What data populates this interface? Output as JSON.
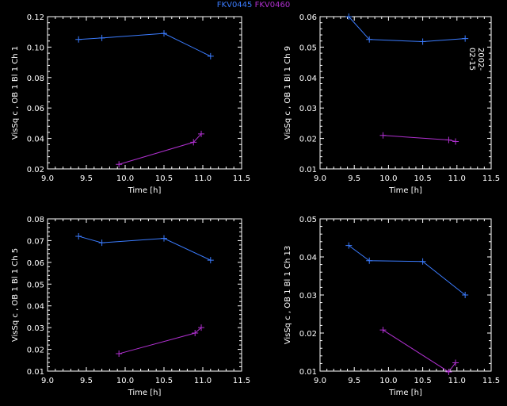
{
  "legend": [
    {
      "name": "FKV0445",
      "color": "#3b7cff"
    },
    {
      "name": "FKV0460",
      "color": "#b030d0"
    }
  ],
  "date_label": "2002-02-15",
  "chart_data": [
    {
      "type": "scatter",
      "xlabel": "Time [h]",
      "ylabel": "VisSq c , OB 1 Bl 1 Ch 1",
      "xlim": [
        9.0,
        11.5
      ],
      "ylim": [
        0.02,
        0.12
      ],
      "xticks": [
        "9.0",
        "9.5",
        "10.0",
        "10.5",
        "11.0",
        "11.5"
      ],
      "yticks": [
        "0.02",
        "0.04",
        "0.06",
        "0.08",
        "0.10",
        "0.12"
      ],
      "series": [
        {
          "name": "FKV0445",
          "color": "#3b7cff",
          "x": [
            9.4,
            9.7,
            10.5,
            11.1
          ],
          "y": [
            0.105,
            0.106,
            0.109,
            0.094
          ]
        },
        {
          "name": "FKV0460",
          "color": "#b030d0",
          "x": [
            9.92,
            10.88,
            10.98
          ],
          "y": [
            0.023,
            0.0375,
            0.043
          ]
        }
      ]
    },
    {
      "type": "scatter",
      "xlabel": "Time [h]",
      "ylabel": "VisSq c , OB 1 Bl 1 Ch 9",
      "xlim": [
        9.0,
        11.5
      ],
      "ylim": [
        0.01,
        0.06
      ],
      "xticks": [
        "9.0",
        "9.5",
        "10.0",
        "10.5",
        "11.0",
        "11.5"
      ],
      "yticks": [
        "0.01",
        "0.02",
        "0.03",
        "0.04",
        "0.05",
        "0.06"
      ],
      "series": [
        {
          "name": "FKV0445",
          "color": "#3b7cff",
          "x": [
            9.42,
            9.72,
            10.5,
            11.12
          ],
          "y": [
            0.06,
            0.0525,
            0.0518,
            0.0528
          ]
        },
        {
          "name": "FKV0460",
          "color": "#b030d0",
          "x": [
            9.92,
            10.88,
            10.98
          ],
          "y": [
            0.021,
            0.0195,
            0.019
          ]
        }
      ]
    },
    {
      "type": "scatter",
      "xlabel": "Time [h]",
      "ylabel": "VisSq c , OB 1 Bl 1 Ch 5",
      "xlim": [
        9.0,
        11.5
      ],
      "ylim": [
        0.01,
        0.08
      ],
      "xticks": [
        "9.0",
        "9.5",
        "10.0",
        "10.5",
        "11.0",
        "11.5"
      ],
      "yticks": [
        "0.01",
        "0.02",
        "0.03",
        "0.04",
        "0.05",
        "0.06",
        "0.07",
        "0.08"
      ],
      "series": [
        {
          "name": "FKV0445",
          "color": "#3b7cff",
          "x": [
            9.4,
            9.7,
            10.5,
            11.1
          ],
          "y": [
            0.072,
            0.069,
            0.071,
            0.061
          ]
        },
        {
          "name": "FKV0460",
          "color": "#b030d0",
          "x": [
            9.92,
            10.9,
            10.98
          ],
          "y": [
            0.018,
            0.0275,
            0.03
          ]
        }
      ]
    },
    {
      "type": "scatter",
      "xlabel": "Time [h]",
      "ylabel": "VisSq c , OB 1 Bl 1 Ch 13",
      "xlim": [
        9.0,
        11.5
      ],
      "ylim": [
        0.01,
        0.05
      ],
      "xticks": [
        "9.0",
        "9.5",
        "10.0",
        "10.5",
        "11.0",
        "11.5"
      ],
      "yticks": [
        "0.01",
        "0.02",
        "0.03",
        "0.04",
        "0.05"
      ],
      "series": [
        {
          "name": "FKV0445",
          "color": "#3b7cff",
          "x": [
            9.42,
            9.72,
            10.5,
            11.12
          ],
          "y": [
            0.043,
            0.039,
            0.0388,
            0.03
          ]
        },
        {
          "name": "FKV0460",
          "color": "#b030d0",
          "x": [
            9.92,
            10.88,
            10.98
          ],
          "y": [
            0.0208,
            0.0098,
            0.0122
          ]
        }
      ]
    }
  ]
}
